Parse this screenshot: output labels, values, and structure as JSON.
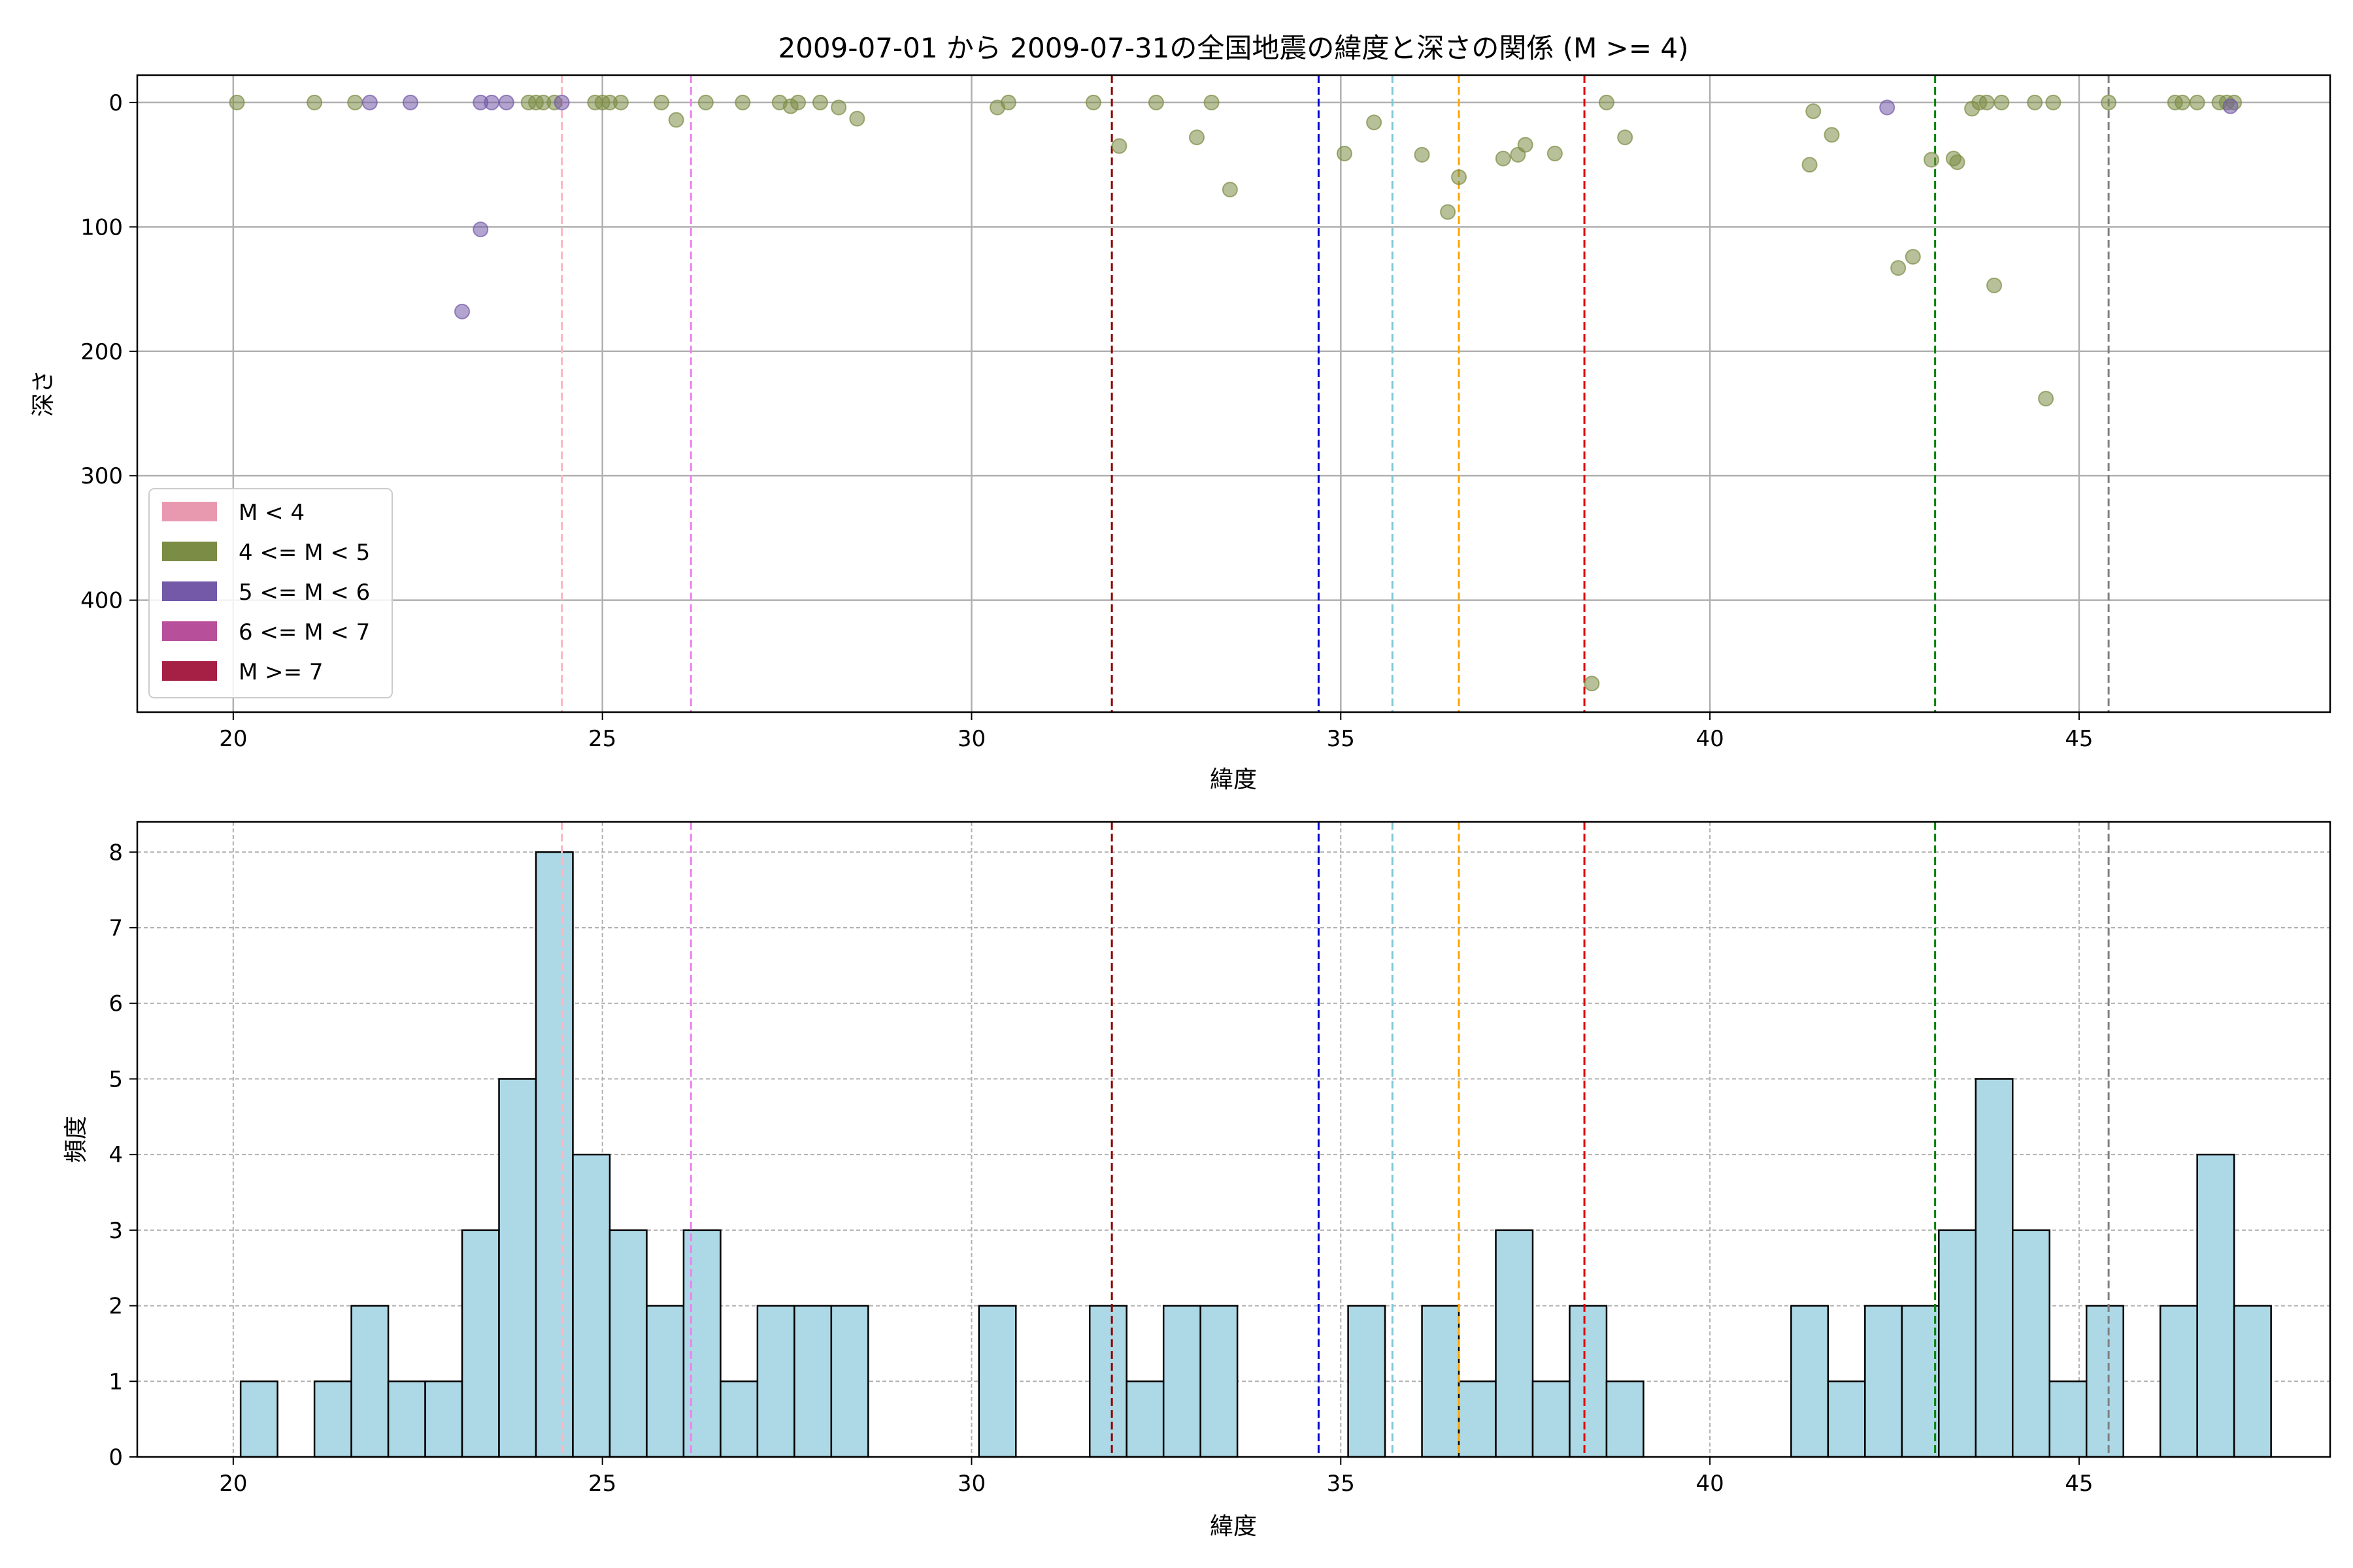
{
  "chart_data": [
    {
      "type": "scatter",
      "title": "2009-07-01 から 2009-07-31の全国地震の緯度と深さの関係 (M >= 4)",
      "xlabel": "緯度",
      "ylabel": "深さ",
      "xlim": [
        18.7,
        48.4
      ],
      "ylim": [
        490,
        -22
      ],
      "y_inverted": true,
      "grid": true,
      "xticks": [
        20,
        25,
        30,
        35,
        40,
        45
      ],
      "yticks": [
        0,
        100,
        200,
        300,
        400
      ],
      "legend_position": "bottom-left",
      "legend": [
        {
          "label": "M < 4",
          "color": "#e899b0"
        },
        {
          "label": "4 <= M < 5",
          "color": "#7b8c44"
        },
        {
          "label": "5 <= M < 6",
          "color": "#7359a8"
        },
        {
          "label": "6 <= M < 7",
          "color": "#b84f9b"
        },
        {
          "label": "M >= 7",
          "color": "#a61f45"
        }
      ],
      "reference_lines": [
        {
          "x": 24.45,
          "color": "#ffb6c1"
        },
        {
          "x": 26.2,
          "color": "#ee82ee"
        },
        {
          "x": 31.9,
          "color": "#8b0000"
        },
        {
          "x": 34.7,
          "color": "#0000cd"
        },
        {
          "x": 35.7,
          "color": "#7ec8d8"
        },
        {
          "x": 36.6,
          "color": "#ffa500"
        },
        {
          "x": 38.3,
          "color": "#e00000"
        },
        {
          "x": 43.05,
          "color": "#008000"
        },
        {
          "x": 45.4,
          "color": "#808080"
        }
      ],
      "series": [
        {
          "name": "4 <= M < 5",
          "color": "#7b8c44",
          "points": [
            [
              20.05,
              0
            ],
            [
              21.1,
              0
            ],
            [
              21.65,
              0
            ],
            [
              24.0,
              0
            ],
            [
              24.1,
              0
            ],
            [
              24.2,
              0
            ],
            [
              24.35,
              0
            ],
            [
              24.9,
              0
            ],
            [
              25.0,
              0
            ],
            [
              25.1,
              0
            ],
            [
              25.25,
              0
            ],
            [
              25.8,
              0
            ],
            [
              26.0,
              14
            ],
            [
              26.4,
              0
            ],
            [
              26.9,
              0
            ],
            [
              27.4,
              0
            ],
            [
              27.55,
              3
            ],
            [
              27.65,
              0
            ],
            [
              27.95,
              0
            ],
            [
              28.2,
              4
            ],
            [
              28.45,
              13
            ],
            [
              30.35,
              4
            ],
            [
              30.5,
              0
            ],
            [
              31.65,
              0
            ],
            [
              32.0,
              35
            ],
            [
              32.5,
              0
            ],
            [
              33.05,
              28
            ],
            [
              33.25,
              0
            ],
            [
              33.5,
              70
            ],
            [
              35.05,
              41
            ],
            [
              35.45,
              16
            ],
            [
              36.1,
              42
            ],
            [
              36.45,
              88
            ],
            [
              36.6,
              60
            ],
            [
              37.2,
              45
            ],
            [
              37.4,
              42
            ],
            [
              37.5,
              34
            ],
            [
              37.9,
              41
            ],
            [
              38.4,
              467
            ],
            [
              38.6,
              0
            ],
            [
              38.85,
              28
            ],
            [
              41.35,
              50
            ],
            [
              41.4,
              7
            ],
            [
              41.65,
              26
            ],
            [
              42.55,
              133
            ],
            [
              42.75,
              124
            ],
            [
              43.0,
              46
            ],
            [
              43.3,
              45
            ],
            [
              43.35,
              48
            ],
            [
              43.55,
              5
            ],
            [
              43.65,
              0
            ],
            [
              43.75,
              0
            ],
            [
              43.85,
              147
            ],
            [
              43.95,
              0
            ],
            [
              44.4,
              0
            ],
            [
              44.55,
              238
            ],
            [
              44.65,
              0
            ],
            [
              45.4,
              0
            ],
            [
              46.3,
              0
            ],
            [
              46.4,
              0
            ],
            [
              46.6,
              0
            ],
            [
              46.9,
              0
            ],
            [
              47.0,
              0
            ],
            [
              47.1,
              0
            ]
          ]
        },
        {
          "name": "5 <= M < 6",
          "color": "#7359a8",
          "points": [
            [
              21.85,
              0
            ],
            [
              22.4,
              0
            ],
            [
              23.1,
              168
            ],
            [
              23.35,
              102
            ],
            [
              23.35,
              0
            ],
            [
              23.5,
              0
            ],
            [
              23.7,
              0
            ],
            [
              24.45,
              0
            ],
            [
              42.4,
              4
            ],
            [
              47.05,
              3
            ]
          ]
        }
      ]
    },
    {
      "type": "bar",
      "title": "",
      "xlabel": "緯度",
      "ylabel": "頻度",
      "xlim": [
        18.7,
        48.4
      ],
      "ylim": [
        0,
        8.4
      ],
      "grid": true,
      "grid_style": "dashed",
      "xticks": [
        20,
        25,
        30,
        35,
        40,
        45
      ],
      "yticks": [
        0,
        1,
        2,
        3,
        4,
        5,
        6,
        7,
        8
      ],
      "bar_color": "#add8e6",
      "bin_start": 20.1,
      "bin_width": 0.5,
      "values": [
        1,
        0,
        1,
        2,
        1,
        1,
        3,
        5,
        8,
        4,
        3,
        2,
        3,
        1,
        2,
        2,
        2,
        0,
        0,
        0,
        2,
        0,
        0,
        2,
        1,
        2,
        2,
        0,
        0,
        0,
        2,
        0,
        2,
        1,
        3,
        1,
        2,
        1,
        0,
        0,
        0,
        0,
        2,
        1,
        2,
        2,
        3,
        5,
        3,
        1,
        2,
        0,
        2,
        4,
        2
      ],
      "reference_lines": [
        {
          "x": 24.45,
          "color": "#ffb6c1"
        },
        {
          "x": 26.2,
          "color": "#ee82ee"
        },
        {
          "x": 31.9,
          "color": "#8b0000"
        },
        {
          "x": 34.7,
          "color": "#0000cd"
        },
        {
          "x": 35.7,
          "color": "#7ec8d8"
        },
        {
          "x": 36.6,
          "color": "#ffa500"
        },
        {
          "x": 38.3,
          "color": "#e00000"
        },
        {
          "x": 43.05,
          "color": "#008000"
        },
        {
          "x": 45.4,
          "color": "#808080"
        }
      ]
    }
  ]
}
